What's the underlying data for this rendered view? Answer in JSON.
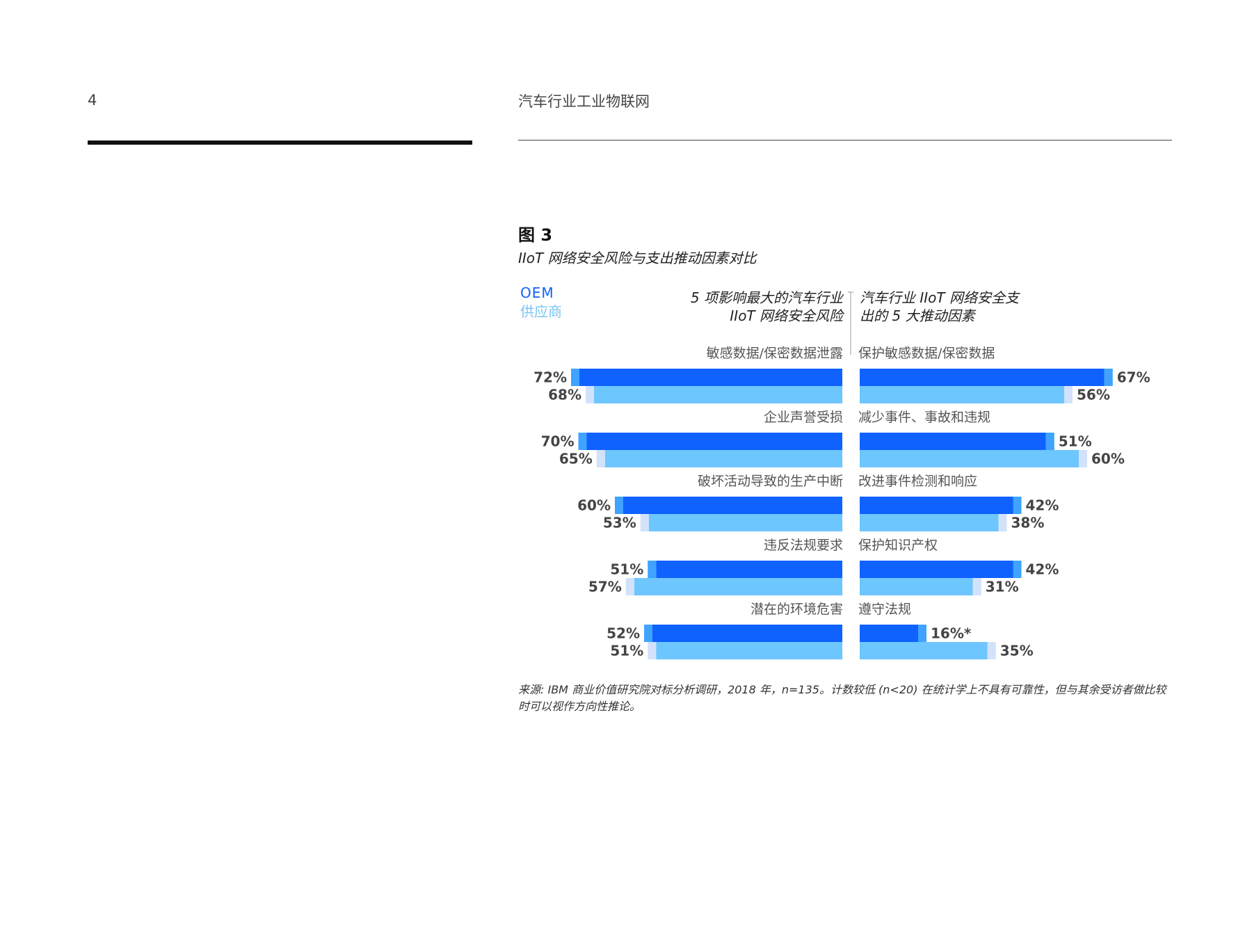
{
  "page": {
    "number": "4",
    "running_head": "汽车行业工业物联网"
  },
  "figure": {
    "label": "图 3",
    "title": "IIoT 网络安全风险与支出推动因素对比",
    "source": "来源: IBM 商业价值研究院对标分析调研，2018 年，n=135。计数较低 (n<20) 在统计学上不具有可靠性，但与其余受访者做比较时可以视作方向性推论。"
  },
  "chart_data": {
    "type": "bar",
    "orientation": "horizontal-diverging",
    "legend": {
      "oem": "OEM",
      "supplier": "供应商",
      "placement": "top-left"
    },
    "colors": {
      "oem": "#0f62fe",
      "supplier": "#6ec6ff"
    },
    "value_unit": "%",
    "left_panel": {
      "heading": [
        "5 项影响最大的汽车行业",
        "IIoT 网络安全风险"
      ],
      "categories": [
        "敏感数据/保密数据泄露",
        "企业声誉受损",
        "破坏活动导致的生产中断",
        "违反法规要求",
        "潜在的环境危害"
      ],
      "series": [
        {
          "name": "OEM",
          "values": [
            72,
            70,
            60,
            51,
            52
          ],
          "labels": [
            "72%",
            "70%",
            "60%",
            "51%",
            "52%"
          ]
        },
        {
          "name": "供应商",
          "values": [
            68,
            65,
            53,
            57,
            51
          ],
          "labels": [
            "68%",
            "65%",
            "53%",
            "57%",
            "51%"
          ]
        }
      ]
    },
    "right_panel": {
      "heading": [
        "汽车行业 IIoT 网络安全支",
        "出的 5 大推动因素"
      ],
      "categories": [
        "保护敏感数据/保密数据",
        "减少事件、事故和违规",
        "改进事件检测和响应",
        "保护知识产权",
        "遵守法规"
      ],
      "series": [
        {
          "name": "OEM",
          "values": [
            67,
            51,
            42,
            42,
            16
          ],
          "labels": [
            "67%",
            "51%",
            "42%",
            "42%",
            "16%*"
          ]
        },
        {
          "name": "供应商",
          "values": [
            56,
            60,
            38,
            31,
            35
          ],
          "labels": [
            "56%",
            "60%",
            "38%",
            "31%",
            "35%"
          ]
        }
      ]
    }
  }
}
